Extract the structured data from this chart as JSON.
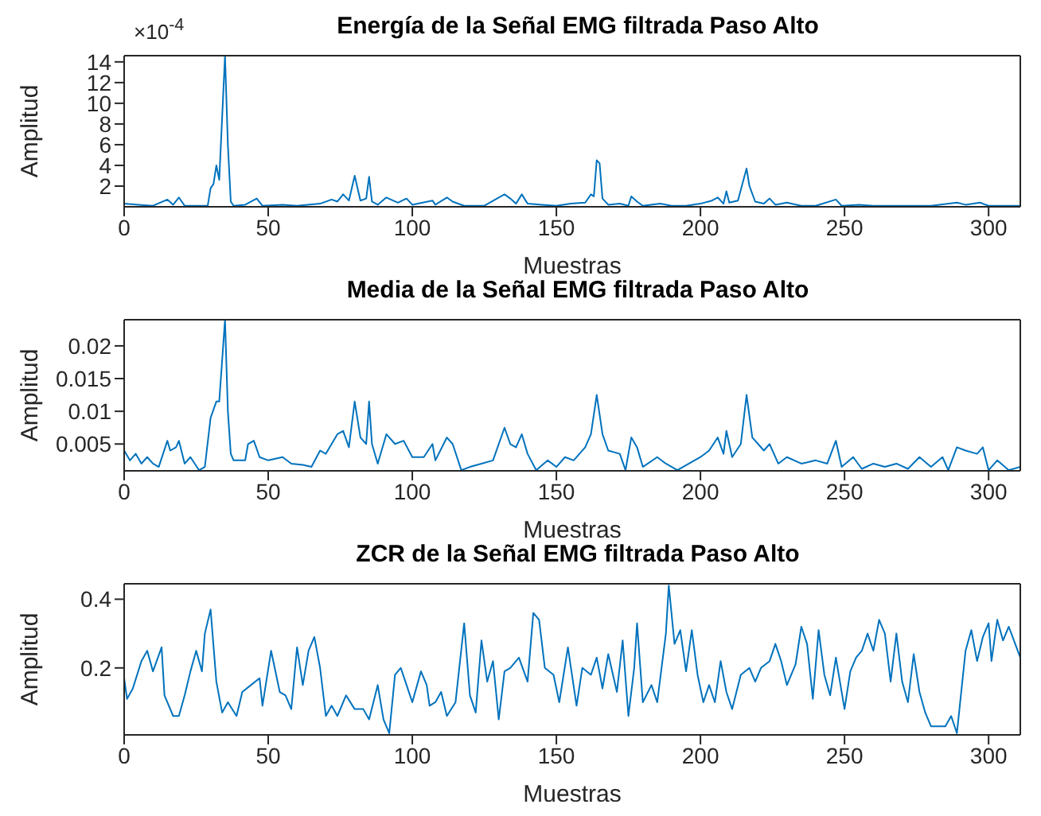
{
  "chart_data": [
    {
      "type": "line",
      "title": "Energía de la Señal EMG filtrada Paso Alto",
      "xlabel": "Muestras",
      "ylabel": "Amplitud",
      "color": "#0072bd",
      "annotations": [
        "×10$^{-4}$"
      ],
      "xlim": [
        0,
        311
      ],
      "xticks": [
        0,
        50,
        100,
        150,
        200,
        250,
        300
      ],
      "ylim": [
        0,
        14.6
      ],
      "yticks": [
        2,
        4,
        6,
        8,
        10,
        12,
        14
      ],
      "x": [
        0,
        5,
        10,
        15,
        17,
        19,
        21,
        29,
        30,
        31,
        32,
        33,
        35,
        36,
        37,
        38,
        42,
        46,
        48,
        55,
        60,
        68,
        72,
        74,
        76,
        78,
        80,
        82,
        84,
        85,
        86,
        88,
        91,
        95,
        98,
        100,
        107,
        108,
        112,
        114,
        118,
        125,
        130,
        132,
        134,
        136,
        138,
        140,
        145,
        150,
        155,
        160,
        162,
        163,
        164,
        165,
        166,
        168,
        172,
        175,
        176,
        178,
        180,
        186,
        190,
        195,
        200,
        204,
        206,
        208,
        209,
        210,
        213,
        216,
        217,
        219,
        222,
        224,
        226,
        230,
        235,
        240,
        247,
        249,
        255,
        260,
        270,
        280,
        289,
        292,
        297,
        300,
        305,
        311
      ],
      "values": [
        0.3,
        0.2,
        0.1,
        0.7,
        0.2,
        0.9,
        0.1,
        0.1,
        1.8,
        2.2,
        4,
        2.6,
        14.6,
        6,
        0.5,
        0.1,
        0.2,
        0.8,
        0.1,
        0.2,
        0.1,
        0.3,
        0.7,
        0.5,
        1.2,
        0.6,
        3.0,
        0.6,
        0.8,
        2.9,
        0.5,
        0.2,
        0.9,
        0.4,
        0.8,
        0.2,
        0.6,
        0.2,
        0.9,
        0.5,
        0.1,
        0.1,
        0.9,
        1.2,
        0.8,
        0.3,
        1.2,
        0.3,
        0.2,
        0.1,
        0.3,
        0.4,
        1.2,
        1.0,
        4.5,
        4.2,
        0.8,
        0.2,
        0.3,
        0.1,
        1.0,
        0.5,
        0.1,
        0.3,
        0.1,
        0.1,
        0.3,
        0.6,
        0.9,
        0.3,
        1.5,
        0.4,
        0.6,
        3.7,
        2,
        0.5,
        0.3,
        0.8,
        0.2,
        0.4,
        0.1,
        0.1,
        0.7,
        0.1,
        0.2,
        0.1,
        0.1,
        0.1,
        0.4,
        0.2,
        0.4,
        0.1,
        0.1,
        0.1
      ]
    },
    {
      "type": "line",
      "title": "Media de la Señal EMG filtrada Paso Alto",
      "xlabel": "Muestras",
      "ylabel": "Amplitud",
      "color": "#0072bd",
      "xlim": [
        0,
        311
      ],
      "xticks": [
        0,
        50,
        100,
        150,
        200,
        250,
        300
      ],
      "ylim": [
        0.0009,
        0.024
      ],
      "yticks": [
        0.005,
        0.01,
        0.015,
        0.02
      ],
      "x": [
        0,
        2,
        4,
        6,
        8,
        10,
        12,
        15,
        16,
        18,
        19,
        21,
        23,
        26,
        28,
        30,
        32,
        33,
        35,
        36,
        37,
        38,
        42,
        43,
        45,
        47,
        50,
        55,
        58,
        62,
        65,
        68,
        70,
        72,
        74,
        76,
        78,
        80,
        82,
        84,
        85,
        86,
        88,
        91,
        94,
        97,
        100,
        104,
        107,
        108,
        112,
        114,
        117,
        120,
        124,
        128,
        132,
        134,
        136,
        138,
        140,
        143,
        147,
        150,
        153,
        156,
        160,
        162,
        164,
        166,
        168,
        172,
        174,
        176,
        178,
        180,
        185,
        188,
        192,
        196,
        200,
        203,
        206,
        208,
        209,
        211,
        214,
        216,
        218,
        220,
        222,
        224,
        227,
        230,
        235,
        240,
        244,
        247,
        249,
        253,
        256,
        260,
        264,
        268,
        272,
        276,
        280,
        284,
        286,
        289,
        292,
        296,
        298,
        300,
        303,
        307,
        311
      ],
      "values": [
        0.004,
        0.0025,
        0.0035,
        0.002,
        0.003,
        0.002,
        0.0015,
        0.0055,
        0.004,
        0.0045,
        0.0055,
        0.002,
        0.003,
        0.001,
        0.0015,
        0.009,
        0.0115,
        0.0115,
        0.024,
        0.01,
        0.0035,
        0.0025,
        0.0025,
        0.005,
        0.0055,
        0.003,
        0.0025,
        0.003,
        0.002,
        0.0018,
        0.0015,
        0.004,
        0.0035,
        0.005,
        0.0065,
        0.007,
        0.0045,
        0.0115,
        0.006,
        0.005,
        0.0115,
        0.005,
        0.002,
        0.0065,
        0.005,
        0.0055,
        0.003,
        0.003,
        0.005,
        0.0025,
        0.006,
        0.005,
        0.001,
        0.0015,
        0.002,
        0.0025,
        0.0075,
        0.005,
        0.0045,
        0.0065,
        0.0035,
        0.001,
        0.0025,
        0.0015,
        0.003,
        0.0025,
        0.0045,
        0.0065,
        0.0125,
        0.0065,
        0.004,
        0.0035,
        0.001,
        0.006,
        0.0045,
        0.0015,
        0.003,
        0.002,
        0.001,
        0.002,
        0.003,
        0.004,
        0.006,
        0.0035,
        0.007,
        0.003,
        0.005,
        0.0125,
        0.006,
        0.005,
        0.004,
        0.005,
        0.002,
        0.003,
        0.002,
        0.0025,
        0.002,
        0.0055,
        0.0015,
        0.003,
        0.0012,
        0.002,
        0.0015,
        0.002,
        0.0012,
        0.003,
        0.0015,
        0.003,
        0.001,
        0.0045,
        0.004,
        0.0035,
        0.0045,
        0.001,
        0.0025,
        0.001,
        0.0015
      ]
    },
    {
      "type": "line",
      "title": "ZCR de la Señal EMG filtrada Paso Alto",
      "xlabel": "Muestras",
      "ylabel": "Amplitud",
      "color": "#0072bd",
      "xlim": [
        0,
        311
      ],
      "xticks": [
        0,
        50,
        100,
        150,
        200,
        250,
        300
      ],
      "ylim": [
        0.005,
        0.445
      ],
      "yticks": [
        0.2,
        0.4
      ],
      "x": [
        0,
        1,
        3,
        6,
        8,
        10,
        13,
        14,
        17,
        19,
        21,
        23,
        25,
        27,
        28,
        30,
        32,
        34,
        36,
        39,
        41,
        44,
        47,
        48,
        51,
        54,
        56,
        58,
        60,
        62,
        64,
        66,
        68,
        70,
        72,
        74,
        77,
        80,
        83,
        85,
        88,
        90,
        92,
        94,
        96,
        98,
        100,
        103,
        105,
        106,
        108,
        110,
        112,
        115,
        118,
        120,
        122,
        124,
        126,
        128,
        130,
        132,
        134,
        137,
        140,
        142,
        144,
        146,
        149,
        151,
        154,
        157,
        159,
        162,
        164,
        166,
        168,
        171,
        173,
        175,
        177,
        178,
        180,
        183,
        185,
        188,
        189,
        191,
        193,
        195,
        197,
        199,
        201,
        203,
        205,
        207,
        209,
        211,
        214,
        217,
        219,
        221,
        224,
        226,
        228,
        230,
        233,
        235,
        237,
        239,
        241,
        243,
        245,
        247,
        250,
        252,
        254,
        256,
        258,
        260,
        262,
        264,
        266,
        268,
        270,
        272,
        274,
        276,
        278,
        280,
        285,
        287,
        289,
        290,
        292,
        294,
        296,
        298,
        300,
        301,
        303,
        305,
        307,
        311
      ],
      "values": [
        0.17,
        0.11,
        0.14,
        0.22,
        0.25,
        0.19,
        0.26,
        0.12,
        0.06,
        0.06,
        0.12,
        0.19,
        0.25,
        0.19,
        0.3,
        0.37,
        0.16,
        0.07,
        0.1,
        0.06,
        0.13,
        0.15,
        0.17,
        0.09,
        0.25,
        0.13,
        0.12,
        0.08,
        0.26,
        0.15,
        0.25,
        0.29,
        0.2,
        0.06,
        0.09,
        0.06,
        0.12,
        0.08,
        0.08,
        0.05,
        0.15,
        0.05,
        0.01,
        0.18,
        0.2,
        0.15,
        0.1,
        0.19,
        0.15,
        0.09,
        0.1,
        0.13,
        0.06,
        0.1,
        0.33,
        0.12,
        0.07,
        0.28,
        0.16,
        0.22,
        0.05,
        0.19,
        0.2,
        0.23,
        0.16,
        0.36,
        0.34,
        0.2,
        0.18,
        0.1,
        0.26,
        0.09,
        0.2,
        0.18,
        0.23,
        0.14,
        0.24,
        0.13,
        0.28,
        0.06,
        0.2,
        0.33,
        0.1,
        0.15,
        0.1,
        0.3,
        0.44,
        0.27,
        0.31,
        0.19,
        0.31,
        0.18,
        0.1,
        0.15,
        0.1,
        0.22,
        0.13,
        0.08,
        0.18,
        0.2,
        0.16,
        0.2,
        0.22,
        0.27,
        0.22,
        0.15,
        0.21,
        0.32,
        0.27,
        0.11,
        0.31,
        0.18,
        0.12,
        0.23,
        0.08,
        0.19,
        0.23,
        0.25,
        0.3,
        0.25,
        0.34,
        0.3,
        0.16,
        0.3,
        0.16,
        0.1,
        0.24,
        0.13,
        0.07,
        0.03,
        0.03,
        0.06,
        0.01,
        0.09,
        0.25,
        0.31,
        0.22,
        0.29,
        0.33,
        0.22,
        0.34,
        0.28,
        0.32,
        0.23
      ]
    }
  ]
}
